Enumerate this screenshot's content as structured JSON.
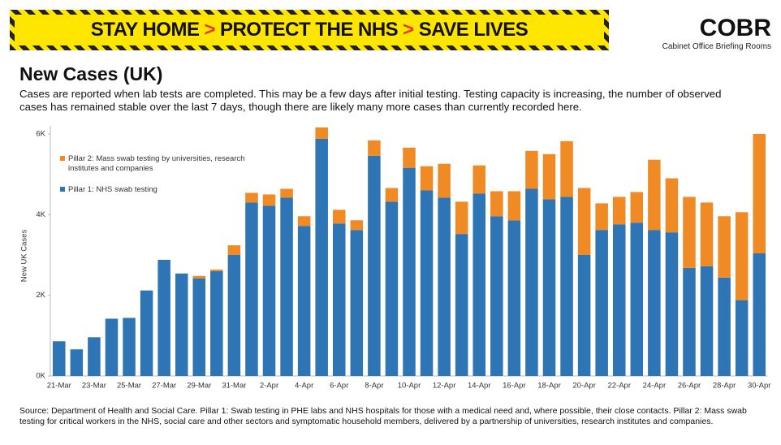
{
  "banner": {
    "parts": [
      "STAY HOME",
      "PROTECT THE NHS",
      "SAVE LIVES"
    ]
  },
  "logo": {
    "name": "COBR",
    "subtitle": "Cabinet Office Briefing Rooms"
  },
  "header": {
    "title": "New Cases (UK)",
    "description": "Cases are reported when lab tests are completed. This may be a few days after initial testing. Testing capacity is increasing, the number of observed cases has remained stable over the last 7 days, though there are likely many more cases than currently recorded here."
  },
  "footer": {
    "source": "Source: Department of Health and Social Care. Pillar 1: Swab testing in PHE labs and NHS hospitals for those with a medical need and, where possible, their close contacts. Pillar 2: Mass swab testing for critical workers in the NHS, social care and other sectors and symptomatic household members, delivered by a partnership of universities, research institutes and companies."
  },
  "chart_data": {
    "type": "stacked-bar",
    "y_label": "New UK Cases",
    "categories": [
      "21-Mar",
      null,
      "23-Mar",
      null,
      "25-Mar",
      null,
      "27-Mar",
      null,
      "29-Mar",
      null,
      "31-Mar",
      null,
      "2-Apr",
      null,
      "4-Apr",
      null,
      "6-Apr",
      null,
      "8-Apr",
      null,
      "10-Apr",
      null,
      "12-Apr",
      null,
      "14-Apr",
      null,
      "16-Apr",
      null,
      "18-Apr",
      null,
      "20-Apr",
      null,
      "22-Apr",
      null,
      "24-Apr",
      null,
      "26-Apr",
      null,
      "28-Apr",
      null,
      "30-Apr"
    ],
    "series": [
      {
        "name": "Pillar 1: NHS swab testing",
        "color": "#2e75b6",
        "values": [
          860,
          660,
          960,
          1420,
          1440,
          2120,
          2880,
          2540,
          2420,
          2600,
          3000,
          4300,
          4220,
          4420,
          3720,
          5880,
          3780,
          3620,
          5460,
          4320,
          5160,
          4600,
          4420,
          3520,
          4520,
          3960,
          3860,
          4640,
          4380,
          4440,
          3000,
          3620,
          3760,
          3800,
          3620,
          3560,
          2680,
          2720,
          2440,
          1880,
          3040
        ]
      },
      {
        "name": "Pillar 2: Mass swab testing by universities, research institutes and companies",
        "color": "#f08a24",
        "values": [
          0,
          0,
          0,
          0,
          0,
          0,
          0,
          0,
          60,
          40,
          240,
          240,
          280,
          220,
          240,
          280,
          340,
          240,
          380,
          340,
          500,
          600,
          840,
          800,
          700,
          620,
          720,
          940,
          1120,
          1380,
          1660,
          660,
          680,
          760,
          1740,
          1340,
          1760,
          1580,
          1520,
          2180,
          2960
        ]
      }
    ],
    "ylim": [
      0,
      6200
    ],
    "yticks": [
      {
        "value": 0,
        "label": "0K"
      },
      {
        "value": 2000,
        "label": "2K"
      },
      {
        "value": 4000,
        "label": "4K"
      },
      {
        "value": 6000,
        "label": "6K"
      }
    ],
    "grid": false,
    "legend": "top-left"
  }
}
